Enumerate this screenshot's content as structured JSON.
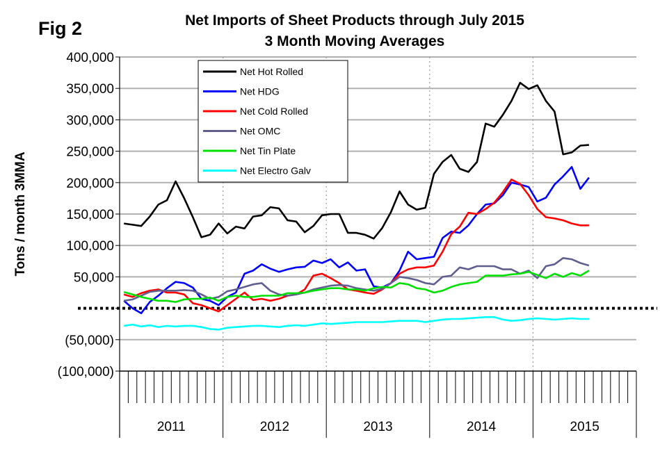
{
  "chart_data": {
    "type": "line",
    "fig_label": "Fig 2",
    "title": "Net Imports of Sheet Products through July 2015",
    "subtitle": "3 Month Moving Averages",
    "ylabel": "Tons / month 3MMA",
    "xlabel": "",
    "ylim": [
      -100000,
      400000
    ],
    "yticks": [
      400000,
      350000,
      300000,
      250000,
      200000,
      150000,
      100000,
      50000,
      0,
      -50000,
      -100000
    ],
    "ytick_labels": [
      "400,000",
      "350,000",
      "300,000",
      "250,000",
      "200,000",
      "150,000",
      "100,000",
      "50,000",
      "",
      "(50,000)",
      "(100,000)"
    ],
    "x_start": "Jan 2011",
    "x_end": "Jul 2015",
    "months_total_axis": 60,
    "year_labels": [
      "2011",
      "2012",
      "2013",
      "2014",
      "2015"
    ],
    "grid": true,
    "legend_placement": "top-left",
    "series": [
      {
        "name": "Net Hot Rolled",
        "color": "#000000",
        "values": [
          135000,
          133000,
          131000,
          146000,
          165000,
          172000,
          202000,
          175000,
          145000,
          113000,
          117000,
          135000,
          119000,
          130000,
          127000,
          146000,
          148000,
          161000,
          159000,
          140000,
          138000,
          121000,
          131000,
          148000,
          150000,
          150000,
          120000,
          120000,
          117000,
          111000,
          128000,
          153000,
          186000,
          165000,
          157000,
          160000,
          214000,
          233000,
          244000,
          222000,
          217000,
          233000,
          294000,
          289000,
          308000,
          330000,
          359000,
          349000,
          355000,
          330000,
          313000,
          245000,
          248000,
          259000,
          260000
        ]
      },
      {
        "name": "Net HDG",
        "color": "#0000ff",
        "values": [
          12000,
          0,
          -8000,
          10000,
          20000,
          32000,
          42000,
          40000,
          33000,
          15000,
          12000,
          5000,
          18000,
          25000,
          55000,
          60000,
          70000,
          63000,
          58000,
          62000,
          65000,
          66000,
          76000,
          72000,
          78000,
          65000,
          73000,
          60000,
          62000,
          35000,
          33000,
          40000,
          60000,
          90000,
          78000,
          80000,
          82000,
          112000,
          122000,
          120000,
          132000,
          150000,
          165000,
          167000,
          180000,
          200000,
          197000,
          193000,
          170000,
          176000,
          197000,
          210000,
          225000,
          190000,
          208000
        ]
      },
      {
        "name": "Net Cold Rolled",
        "color": "#ff0000",
        "values": [
          22000,
          18000,
          24000,
          28000,
          30000,
          25000,
          25000,
          22000,
          8000,
          5000,
          0,
          -5000,
          5000,
          15000,
          25000,
          13000,
          15000,
          12000,
          15000,
          20000,
          22000,
          30000,
          52000,
          55000,
          48000,
          40000,
          30000,
          28000,
          25000,
          23000,
          30000,
          40000,
          55000,
          62000,
          65000,
          65000,
          68000,
          90000,
          118000,
          130000,
          152000,
          150000,
          158000,
          168000,
          185000,
          205000,
          198000,
          180000,
          158000,
          145000,
          143000,
          140000,
          135000,
          132000,
          132000
        ]
      },
      {
        "name": "Net OMC",
        "color": "#5f5f8f",
        "values": [
          12000,
          14000,
          20000,
          26000,
          28000,
          28000,
          28000,
          29000,
          28000,
          22000,
          15000,
          18000,
          27000,
          30000,
          34000,
          38000,
          40000,
          28000,
          22000,
          20000,
          22000,
          25000,
          30000,
          33000,
          36000,
          37000,
          36000,
          32000,
          30000,
          28000,
          31000,
          40000,
          50000,
          48000,
          45000,
          40000,
          38000,
          50000,
          52000,
          65000,
          62000,
          67000,
          67000,
          67000,
          62000,
          62000,
          55000,
          60000,
          48000,
          67000,
          70000,
          80000,
          78000,
          72000,
          68000
        ]
      },
      {
        "name": "Net Tin Plate",
        "color": "#00e000",
        "values": [
          26000,
          22000,
          18000,
          15000,
          12000,
          12000,
          10000,
          14000,
          15000,
          15000,
          17000,
          12000,
          18000,
          20000,
          18000,
          18000,
          20000,
          20000,
          20000,
          24000,
          24000,
          25000,
          28000,
          30000,
          32000,
          32000,
          30000,
          30000,
          28000,
          32000,
          34000,
          33000,
          40000,
          38000,
          32000,
          30000,
          25000,
          28000,
          34000,
          38000,
          40000,
          42000,
          52000,
          52000,
          52000,
          54000,
          55000,
          58000,
          53000,
          48000,
          55000,
          50000,
          56000,
          52000,
          60000
        ]
      },
      {
        "name": "Net Electro Galv",
        "color": "#00ffff",
        "values": [
          -28000,
          -26000,
          -29000,
          -27000,
          -30000,
          -28000,
          -29000,
          -28000,
          -28000,
          -30000,
          -33000,
          -34000,
          -31000,
          -30000,
          -29000,
          -28000,
          -28000,
          -29000,
          -30000,
          -28000,
          -27000,
          -28000,
          -26000,
          -24000,
          -25000,
          -24000,
          -23000,
          -22000,
          -22000,
          -22000,
          -22000,
          -21000,
          -20000,
          -20000,
          -20000,
          -22000,
          -20000,
          -18000,
          -17000,
          -17000,
          -16000,
          -15000,
          -14000,
          -14000,
          -18000,
          -20000,
          -19000,
          -17000,
          -16000,
          -17000,
          -18000,
          -17000,
          -16000,
          -17000,
          -17000
        ]
      }
    ]
  }
}
